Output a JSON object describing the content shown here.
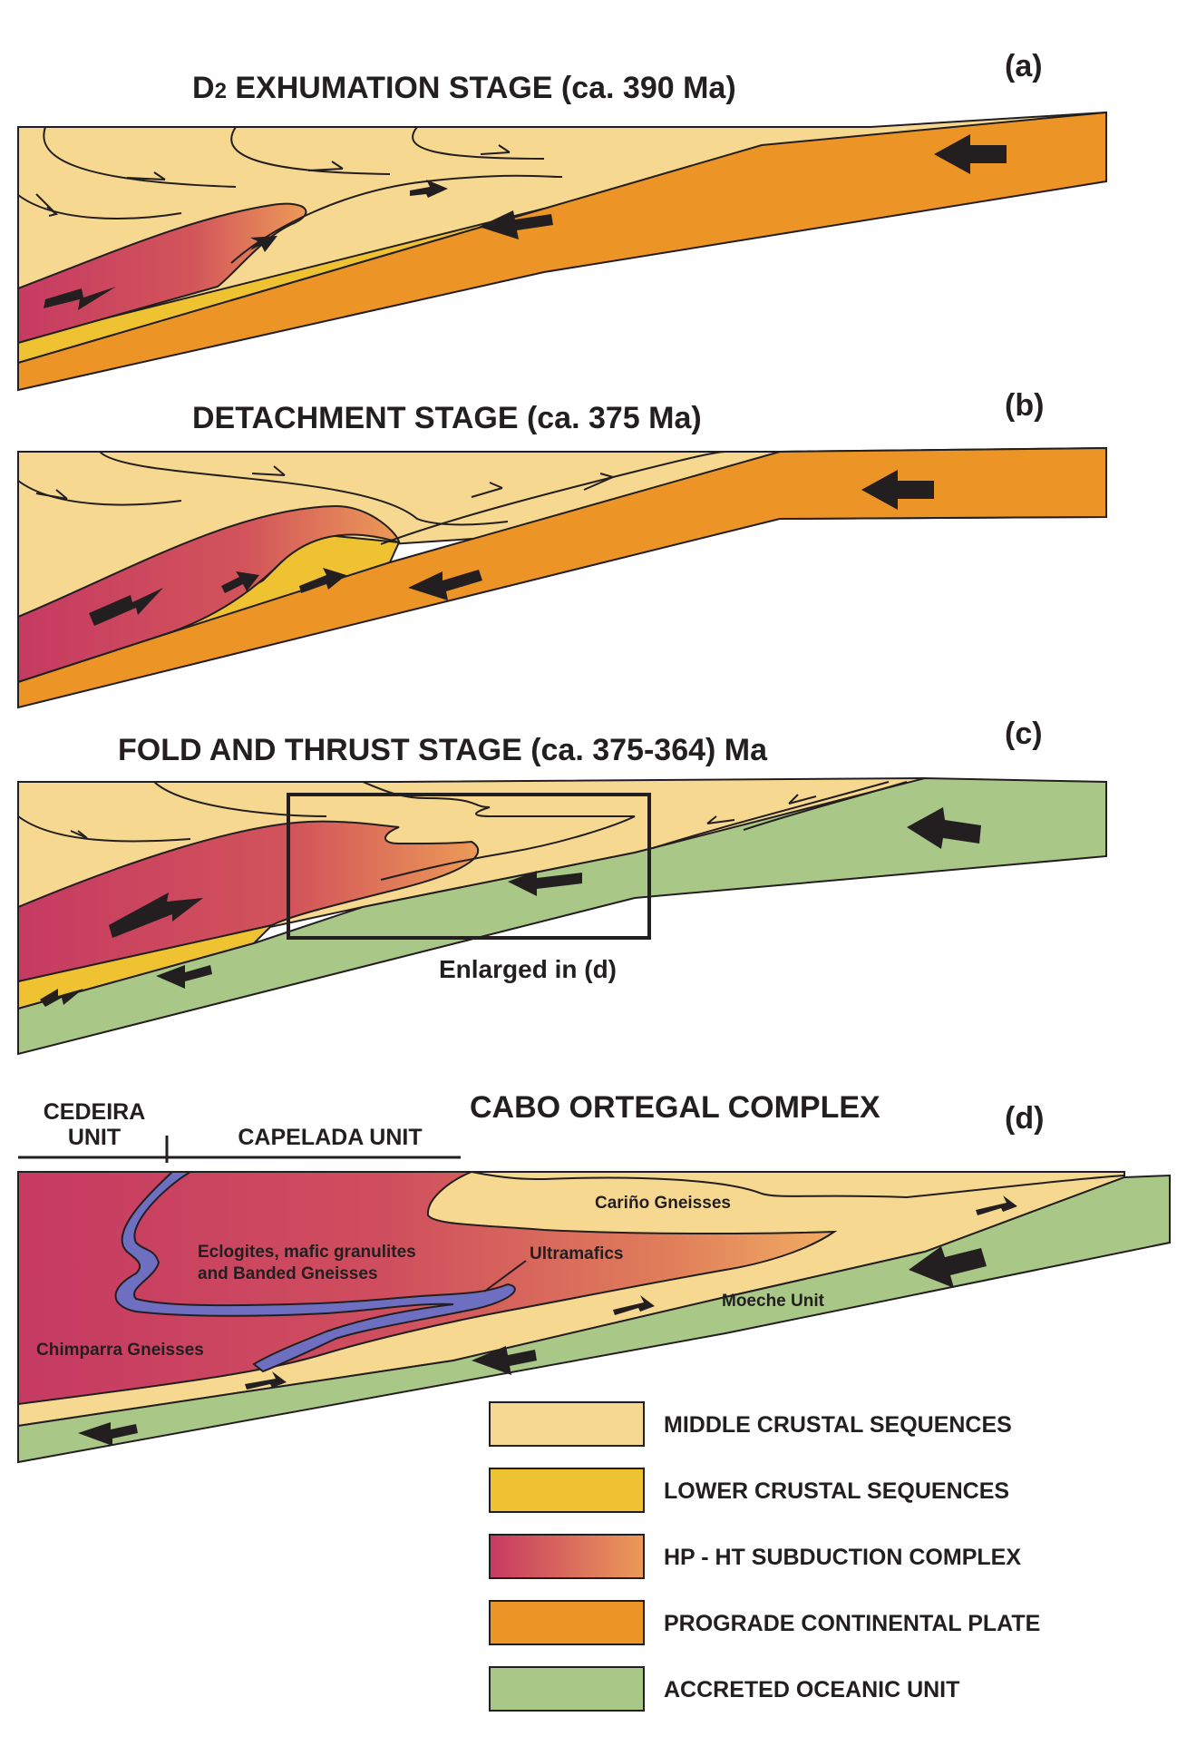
{
  "panels": {
    "a": {
      "label": "(a)",
      "title_prefix": "D",
      "title_sub": "2",
      "title_rest": " EXHUMATION STAGE (ca. 390 Ma)"
    },
    "b": {
      "label": "(b)",
      "title": "DETACHMENT STAGE (ca. 375 Ma)"
    },
    "c": {
      "label": "(c)",
      "title": "FOLD AND THRUST STAGE (ca. 375-364) Ma",
      "enlarged_note": "Enlarged in (d)"
    },
    "d": {
      "label": "(d)",
      "title": "CABO ORTEGAL COMPLEX",
      "unit_left_line1": "CEDEIRA",
      "unit_left_line2": "UNIT",
      "unit_right": "CAPELADA UNIT",
      "labels": {
        "carino": "Cariño Gneisses",
        "eclogites_line1": "Eclogites, mafic granulites",
        "eclogites_line2": "and Banded Gneisses",
        "ultramafics": "Ultramafics",
        "moeche": "Moeche Unit",
        "chimparra": "Chimparra Gneisses"
      }
    }
  },
  "legend": [
    {
      "label": "MIDDLE CRUSTAL SEQUENCES",
      "color": "#f7d890"
    },
    {
      "label": "LOWER CRUSTAL SEQUENCES",
      "color": "#efc232"
    },
    {
      "label": "HP - HT SUBDUCTION COMPLEX",
      "color": "#c63a62"
    },
    {
      "label": "PROGRADE CONTINENTAL PLATE",
      "color": "#ec9426"
    },
    {
      "label": "ACCRETED OCEANIC UNIT",
      "color": "#a9c887"
    }
  ],
  "colors": {
    "middle_crust": "#f7d890",
    "lower_crust": "#efc232",
    "hp_ht_dark": "#c63a62",
    "hp_ht_light": "#ec9a58",
    "continental_plate": "#ec9426",
    "oceanic_unit": "#a9c887",
    "ultramafics": "#6f6fc2",
    "ink": "#231f20"
  }
}
